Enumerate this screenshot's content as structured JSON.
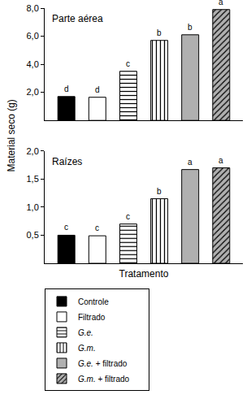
{
  "chart_data": [
    {
      "type": "bar",
      "title": "Parte aérea",
      "ylabel": "Material seco (g)",
      "categories": [
        "Controle",
        "Filtrado",
        "G.e.",
        "G.m.",
        "G.e. + filtrado",
        "G.m. + filtrado"
      ],
      "values": [
        1.7,
        1.65,
        3.5,
        5.7,
        6.1,
        7.9
      ],
      "annotations": [
        "d",
        "d",
        "c",
        "b",
        "b",
        "a"
      ],
      "colors": [
        "#000000",
        "#ffffff",
        "#ffffff",
        "#ffffff",
        "#b0b0b0",
        "#b0b0b0"
      ],
      "ylim": [
        0,
        8
      ],
      "yticks": [
        {
          "value": 2,
          "label": "2,0"
        },
        {
          "value": 4,
          "label": "4,0"
        },
        {
          "value": 6,
          "label": "6,0"
        },
        {
          "value": 8,
          "label": "8,0"
        }
      ],
      "grid": false,
      "tick_labels": "y",
      "legend": "bottom"
    },
    {
      "type": "bar",
      "title": "Raízes",
      "xlabel": "Tratamento",
      "categories": [
        "Controle",
        "Filtrado",
        "G.e.",
        "G.m.",
        "G.e. + filtrado",
        "G.m. + filtrado"
      ],
      "values": [
        0.5,
        0.49,
        0.7,
        1.15,
        1.67,
        1.7
      ],
      "annotations": [
        "c",
        "c",
        "c",
        "b",
        "a",
        "a"
      ],
      "colors": [
        "#000000",
        "#ffffff",
        "#ffffff",
        "#ffffff",
        "#b0b0b0",
        "#b0b0b0"
      ],
      "ylim": [
        0,
        2
      ],
      "yticks": [
        {
          "value": 0.5,
          "label": "0,5"
        },
        {
          "value": 1,
          "label": "1,0"
        },
        {
          "value": 1.5,
          "label": "1,5"
        },
        {
          "value": 2,
          "label": "2,0"
        }
      ],
      "grid": false,
      "tick_labels": "y"
    }
  ]
}
